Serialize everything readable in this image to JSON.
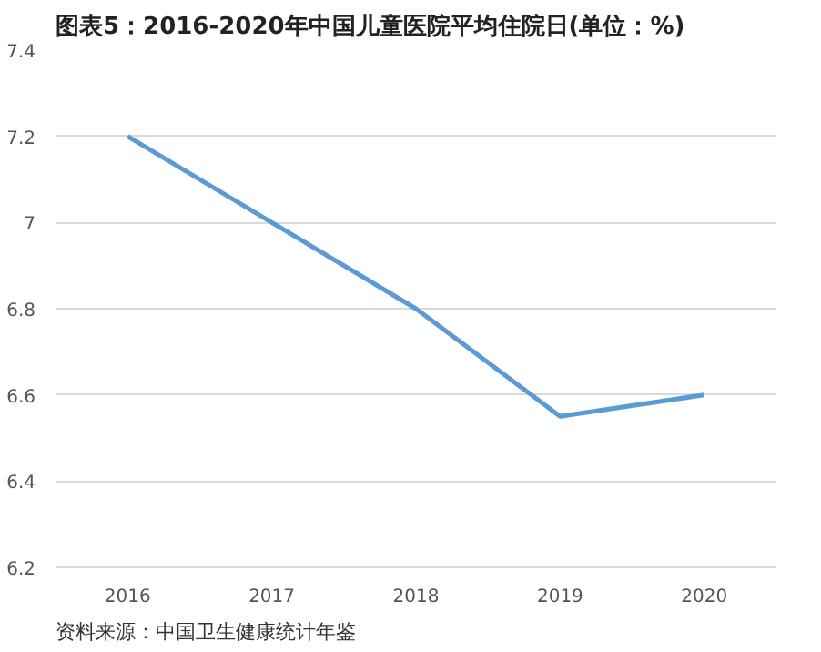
{
  "chart_data": {
    "type": "line",
    "title": "图表5：2016-2020年中国儿童医院平均住院日(单位：%)",
    "categories": [
      "2016",
      "2017",
      "2018",
      "2019",
      "2020"
    ],
    "series": [
      {
        "color": "#5b9bd5",
        "values": [
          7.2,
          7.0,
          6.8,
          6.55,
          6.6
        ]
      }
    ],
    "ylim": [
      6.2,
      7.4
    ],
    "yticks": [
      6.2,
      6.4,
      6.6,
      6.8,
      7,
      7.2,
      7.4
    ],
    "grid": "y",
    "marker": "none",
    "line_style": "solid",
    "annotations": [
      "资料来源：中国卫生健康统计年鉴"
    ]
  }
}
